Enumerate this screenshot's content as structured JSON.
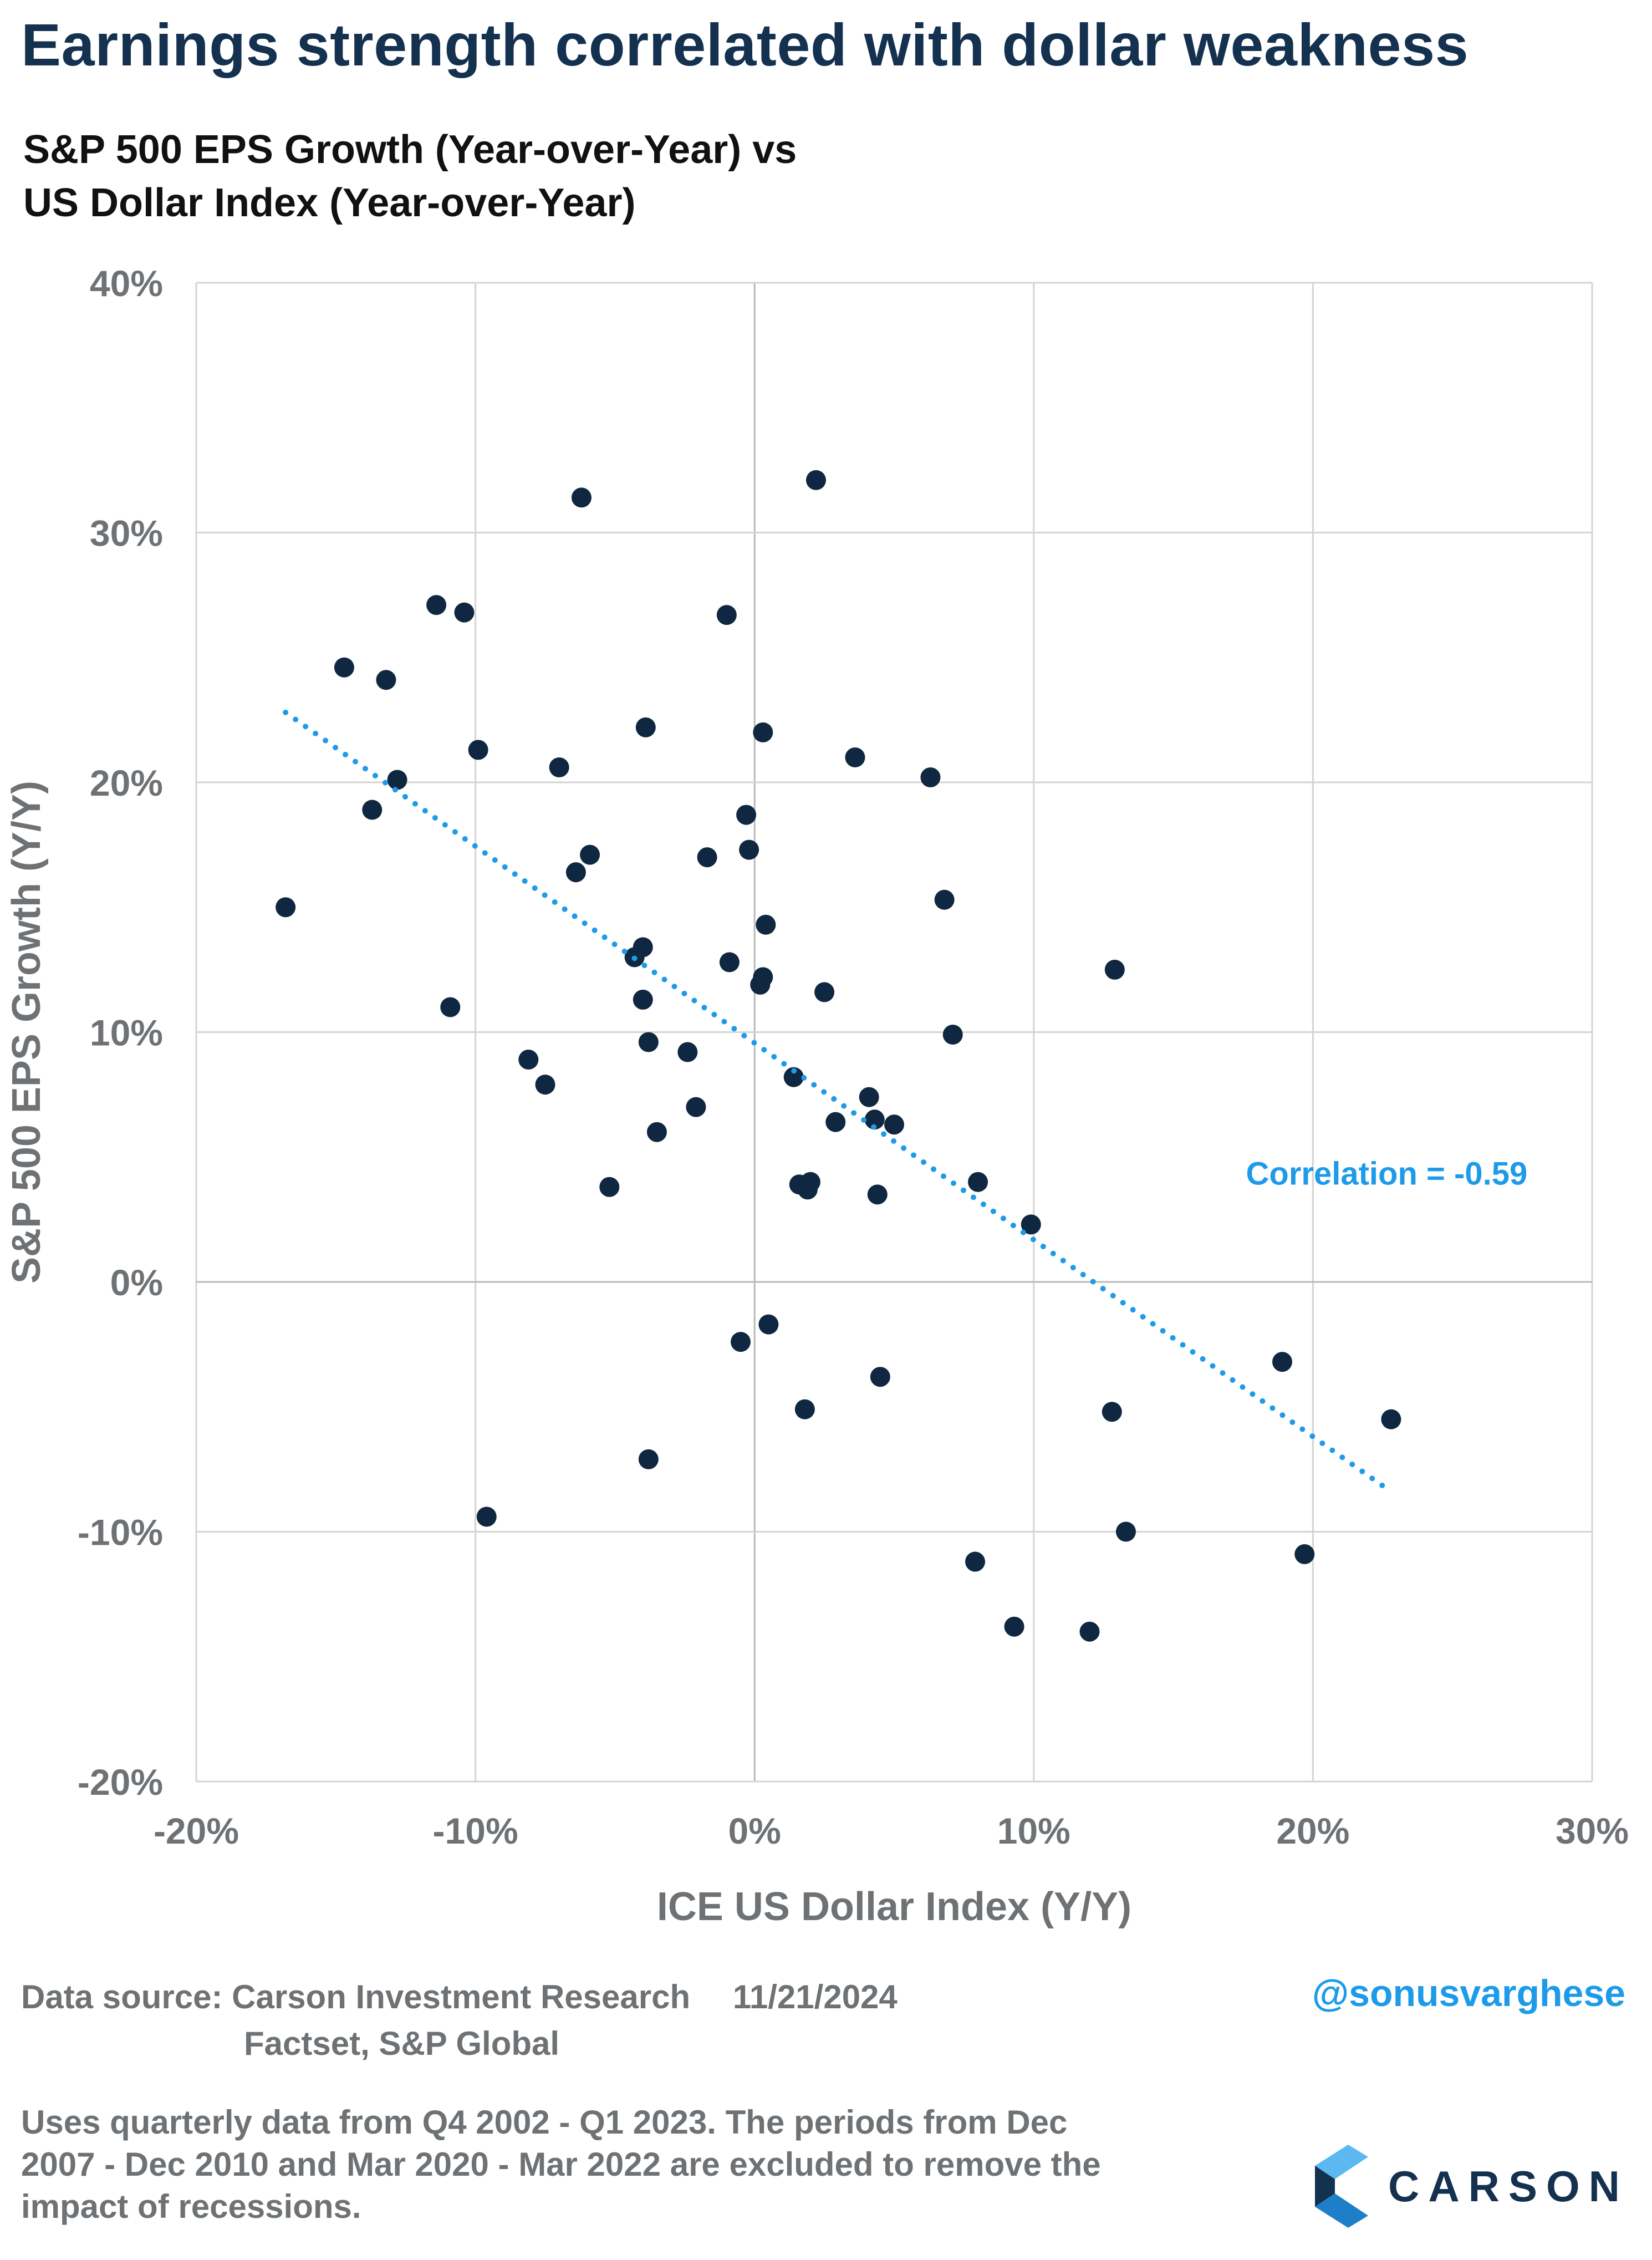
{
  "title": "Earnings strength correlated with dollar weakness",
  "subtitle": {
    "line1": "S&P 500 EPS Growth (Year-over-Year) vs",
    "line2": "US Dollar Index (Year-over-Year)"
  },
  "colors": {
    "title": "#14314f",
    "dots": "#0f2740",
    "trendline": "#1e9be8",
    "grid": "#d4d4d4",
    "axis_text": "#6e7275",
    "handle": "#1e9be8"
  },
  "chart_data": {
    "type": "scatter",
    "xlabel": "ICE US Dollar Index (Y/Y)",
    "ylabel": "S&P 500 EPS Growth (Y/Y)",
    "xlim": [
      -20,
      30
    ],
    "ylim": [
      -20,
      40
    ],
    "x_ticks": [
      -20,
      -10,
      0,
      10,
      20,
      30
    ],
    "y_ticks": [
      -20,
      -10,
      0,
      10,
      20,
      30,
      40
    ],
    "x_tick_labels": [
      "-20%",
      "-10%",
      "0%",
      "10%",
      "20%",
      "30%"
    ],
    "y_tick_labels": [
      "-20%",
      "-10%",
      "0%",
      "10%",
      "20%",
      "30%",
      "40%"
    ],
    "grid": true,
    "points": [
      [
        -16.8,
        15.0
      ],
      [
        -14.7,
        24.6
      ],
      [
        -13.7,
        18.9
      ],
      [
        -13.2,
        24.1
      ],
      [
        -12.8,
        20.1
      ],
      [
        -11.4,
        27.1
      ],
      [
        -10.9,
        11.0
      ],
      [
        -10.4,
        26.8
      ],
      [
        -9.9,
        21.3
      ],
      [
        -9.6,
        -9.4
      ],
      [
        -8.1,
        8.9
      ],
      [
        -7.5,
        7.9
      ],
      [
        -7.0,
        20.6
      ],
      [
        -6.4,
        16.4
      ],
      [
        -6.2,
        31.4
      ],
      [
        -5.9,
        17.1
      ],
      [
        -5.2,
        3.8
      ],
      [
        -4.3,
        13.0
      ],
      [
        -4.0,
        13.4
      ],
      [
        -4.0,
        11.3
      ],
      [
        -3.9,
        22.2
      ],
      [
        -3.8,
        9.6
      ],
      [
        -3.8,
        -7.1
      ],
      [
        -3.5,
        6.0
      ],
      [
        -2.4,
        9.2
      ],
      [
        -2.1,
        7.0
      ],
      [
        -1.7,
        17.0
      ],
      [
        -1.0,
        26.7
      ],
      [
        -0.9,
        12.8
      ],
      [
        -0.5,
        -2.4
      ],
      [
        -0.3,
        18.7
      ],
      [
        -0.2,
        17.3
      ],
      [
        0.2,
        11.9
      ],
      [
        0.3,
        12.2
      ],
      [
        0.3,
        22.0
      ],
      [
        0.4,
        14.3
      ],
      [
        0.5,
        -1.7
      ],
      [
        1.4,
        8.2
      ],
      [
        1.6,
        3.9
      ],
      [
        1.8,
        -5.1
      ],
      [
        1.9,
        3.7
      ],
      [
        2.0,
        4.0
      ],
      [
        2.2,
        32.1
      ],
      [
        2.5,
        11.6
      ],
      [
        2.9,
        6.4
      ],
      [
        3.6,
        21.0
      ],
      [
        4.1,
        7.4
      ],
      [
        4.3,
        6.5
      ],
      [
        4.4,
        3.5
      ],
      [
        4.5,
        -3.8
      ],
      [
        5.0,
        6.3
      ],
      [
        6.3,
        20.2
      ],
      [
        6.8,
        15.3
      ],
      [
        7.1,
        9.9
      ],
      [
        7.9,
        -11.2
      ],
      [
        8.0,
        4.0
      ],
      [
        9.3,
        -13.8
      ],
      [
        9.9,
        2.3
      ],
      [
        12.0,
        -14.0
      ],
      [
        12.8,
        -5.2
      ],
      [
        12.9,
        12.5
      ],
      [
        13.3,
        -10.0
      ],
      [
        18.9,
        -3.2
      ],
      [
        19.7,
        -10.9
      ],
      [
        22.8,
        -5.5
      ]
    ],
    "trendline": {
      "style": "dotted",
      "x": [
        -16.8,
        22.8
      ],
      "y": [
        22.8,
        -8.4
      ]
    },
    "annotations": [
      {
        "text": "Correlation = -0.59",
        "x": 17.6,
        "y": 3.9
      }
    ]
  },
  "footer": {
    "source_label": "Data source:",
    "source_1": "Carson Investment Research",
    "date": "11/21/2024",
    "source_2": "Factset, S&P Global",
    "handle": "@sonusvarghese",
    "note": "Uses quarterly data from Q4 2002 - Q1 2023. The periods from Dec 2007 - Dec 2010 and Mar 2020 - Mar 2022 are excluded to remove the impact of recessions.",
    "logo_text": "CARSON"
  }
}
